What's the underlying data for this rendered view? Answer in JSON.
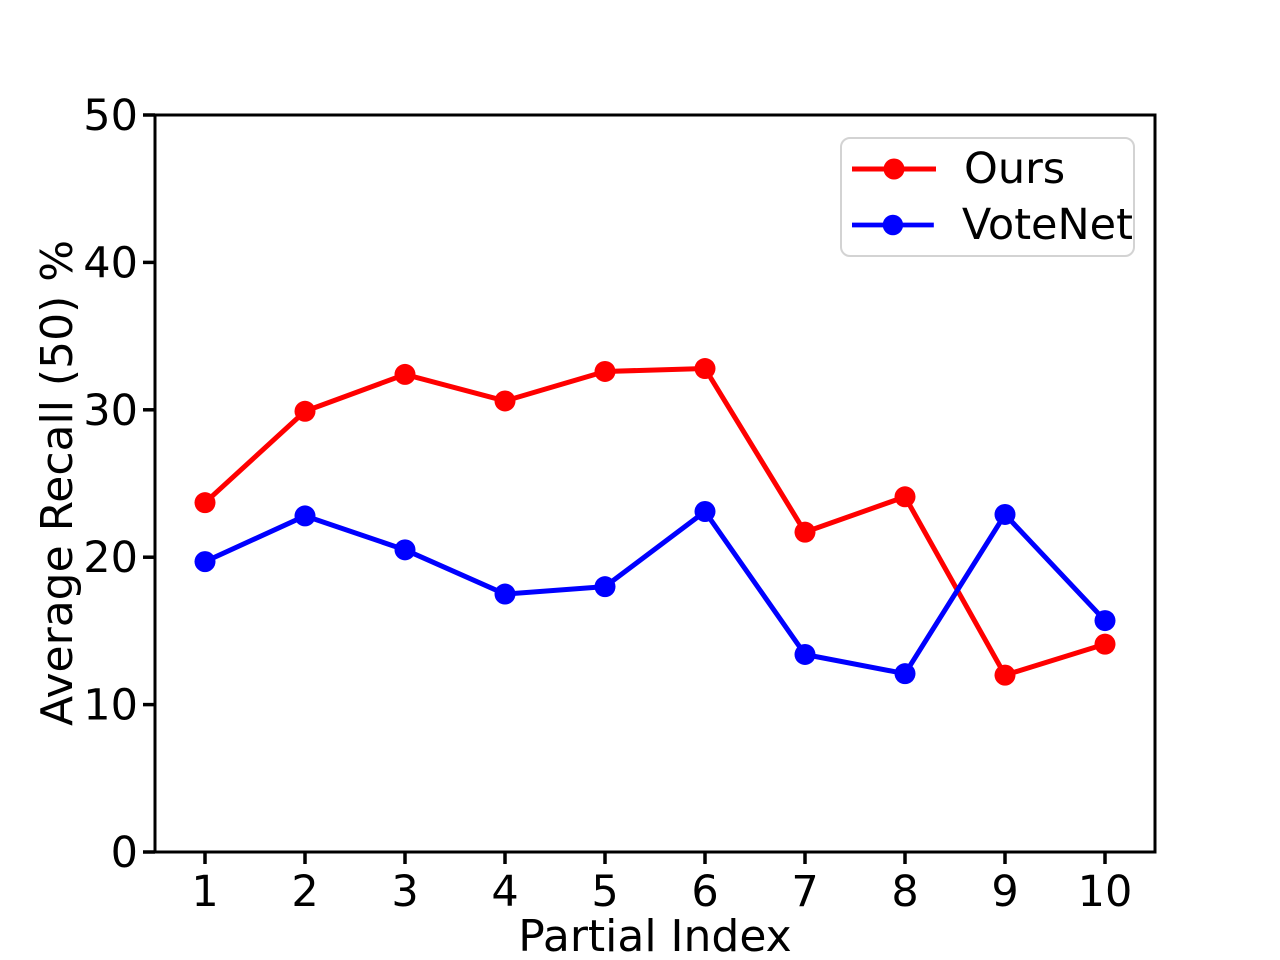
{
  "chart_data": {
    "type": "line",
    "title": "",
    "xlabel": "Partial Index",
    "ylabel": "Average Recall (50) %",
    "x": [
      1,
      2,
      3,
      4,
      5,
      6,
      7,
      8,
      9,
      10
    ],
    "series": [
      {
        "name": "Ours",
        "color": "#ff0000",
        "marker": "circle",
        "values": [
          23.7,
          29.9,
          32.4,
          30.6,
          32.6,
          32.8,
          21.7,
          24.1,
          12.0,
          14.1
        ]
      },
      {
        "name": "VoteNet",
        "color": "#0000ff",
        "marker": "circle",
        "values": [
          19.7,
          22.8,
          20.5,
          17.5,
          18.0,
          23.1,
          13.4,
          12.1,
          22.9,
          15.7
        ]
      }
    ],
    "xlim": [
      0.5,
      10.5
    ],
    "ylim": [
      0,
      50
    ],
    "xticks": [
      "1",
      "2",
      "3",
      "4",
      "5",
      "6",
      "7",
      "8",
      "9",
      "10"
    ],
    "yticks": [
      "0",
      "10",
      "20",
      "30",
      "40",
      "50"
    ],
    "grid": false,
    "legend": {
      "position": "upper right",
      "entries": [
        "Ours",
        "VoteNet"
      ]
    },
    "axis_color": "#000000",
    "background": "#ffffff"
  }
}
